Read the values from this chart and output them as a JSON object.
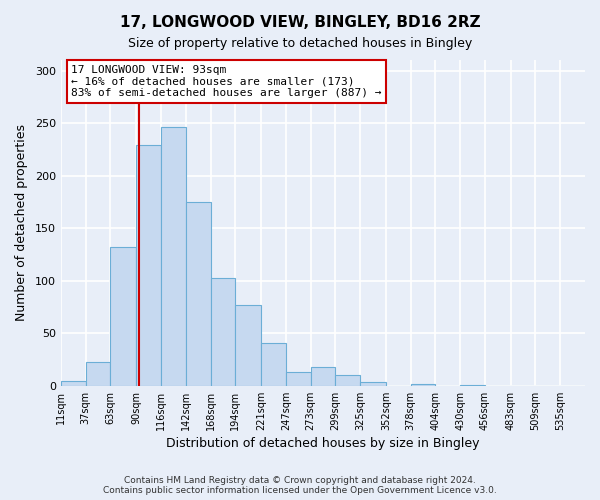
{
  "title": "17, LONGWOOD VIEW, BINGLEY, BD16 2RZ",
  "subtitle": "Size of property relative to detached houses in Bingley",
  "xlabel": "Distribution of detached houses by size in Bingley",
  "ylabel": "Number of detached properties",
  "bar_values": [
    5,
    23,
    132,
    229,
    246,
    175,
    103,
    77,
    41,
    13,
    18,
    10,
    4,
    0,
    2,
    0,
    1,
    0,
    0,
    0,
    0
  ],
  "bar_labels": [
    "11sqm",
    "37sqm",
    "63sqm",
    "90sqm",
    "116sqm",
    "142sqm",
    "168sqm",
    "194sqm",
    "221sqm",
    "247sqm",
    "273sqm",
    "299sqm",
    "325sqm",
    "352sqm",
    "378sqm",
    "404sqm",
    "430sqm",
    "456sqm",
    "483sqm",
    "509sqm",
    "535sqm"
  ],
  "bar_color": "#c6d9f0",
  "bar_edge_color": "#6baed6",
  "background_color": "#e8eef8",
  "grid_color": "#ffffff",
  "ylim": [
    0,
    310
  ],
  "yticks": [
    0,
    50,
    100,
    150,
    200,
    250,
    300
  ],
  "property_size": 93,
  "property_line_color": "#cc0000",
  "annotation_title": "17 LONGWOOD VIEW: 93sqm",
  "annotation_line1": "← 16% of detached houses are smaller (173)",
  "annotation_line2": "83% of semi-detached houses are larger (887) →",
  "annotation_box_color": "#cc0000",
  "footer_line1": "Contains HM Land Registry data © Crown copyright and database right 2024.",
  "footer_line2": "Contains public sector information licensed under the Open Government Licence v3.0.",
  "bin_edges": [
    11,
    37,
    63,
    90,
    116,
    142,
    168,
    194,
    221,
    247,
    273,
    299,
    325,
    352,
    378,
    404,
    430,
    456,
    483,
    509,
    535,
    561
  ],
  "num_bins": 21,
  "title_fontsize": 11,
  "subtitle_fontsize": 9,
  "xlabel_fontsize": 9,
  "ylabel_fontsize": 9,
  "tick_fontsize": 7,
  "annotation_fontsize": 8,
  "footer_fontsize": 6.5
}
